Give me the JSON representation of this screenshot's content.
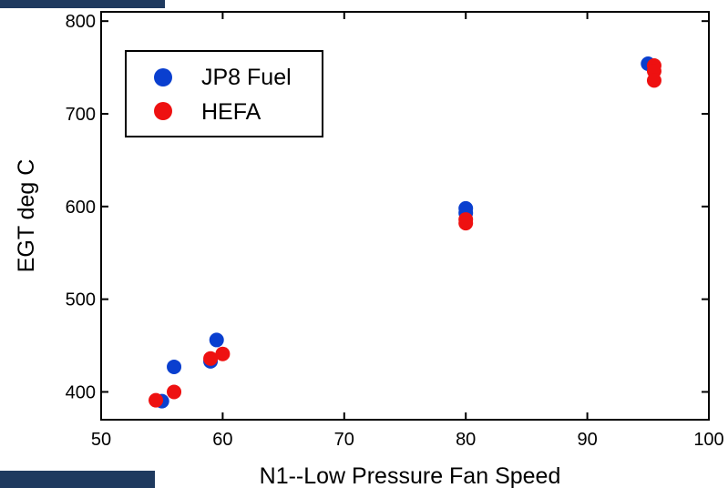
{
  "chart_data": {
    "type": "scatter",
    "title": "",
    "xlabel": "N1--Low Pressure Fan Speed",
    "ylabel": "EGT deg C",
    "xlim": [
      50,
      100
    ],
    "ylim": [
      370,
      810
    ],
    "xticks": [
      50,
      60,
      70,
      80,
      90,
      100
    ],
    "yticks": [
      400,
      500,
      600,
      700,
      800
    ],
    "grid": false,
    "legend_position": "top-left",
    "series": [
      {
        "name": "JP8 Fuel",
        "color": "#0a3fcf",
        "points": [
          {
            "x": 55,
            "y": 390
          },
          {
            "x": 56,
            "y": 427
          },
          {
            "x": 59,
            "y": 433
          },
          {
            "x": 59.5,
            "y": 456
          },
          {
            "x": 80,
            "y": 598
          },
          {
            "x": 80,
            "y": 593
          },
          {
            "x": 95,
            "y": 754
          }
        ]
      },
      {
        "name": "HEFA",
        "color": "#ee1111",
        "points": [
          {
            "x": 54.5,
            "y": 391
          },
          {
            "x": 56,
            "y": 400
          },
          {
            "x": 59,
            "y": 436
          },
          {
            "x": 60,
            "y": 441
          },
          {
            "x": 80,
            "y": 586
          },
          {
            "x": 80,
            "y": 582
          },
          {
            "x": 95.5,
            "y": 752
          },
          {
            "x": 95.5,
            "y": 746
          },
          {
            "x": 95.5,
            "y": 736
          }
        ]
      }
    ]
  }
}
